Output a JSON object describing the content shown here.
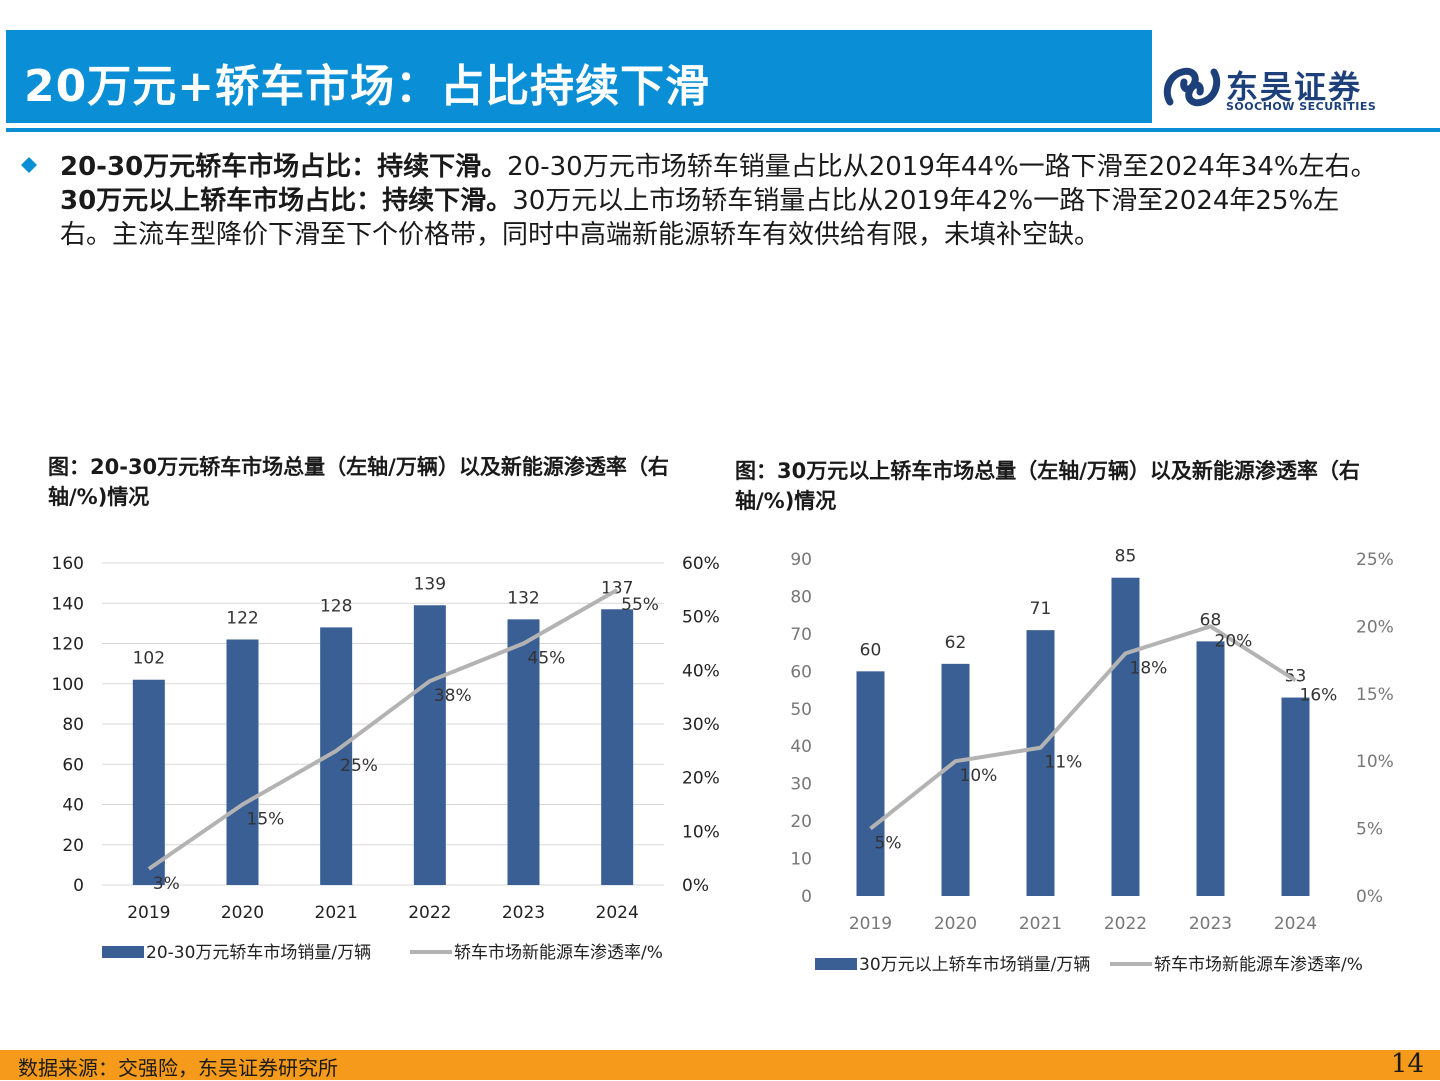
{
  "header": {
    "title": "20万元+轿车市场：占比持续下滑",
    "logo_cn": "东吴证券",
    "logo_en": "SOOCHOW SECURITIES"
  },
  "summary": {
    "b1": "20-30万元轿车市场占比：持续下滑。",
    "t1": "20-30万元市场轿车销量占比从2019年44%一路下滑至2024年34%左右。",
    "b2": "30万元以上轿车市场占比：持续下滑。",
    "t2": "30万元以上市场轿车销量占比从2019年42%一路下滑至2024年25%左右。主流车型降价下滑至下个价格带，同时中高端新能源轿车有效供给有限，未填补空缺。"
  },
  "colors": {
    "bar": "#3a5f94",
    "line": "#b3b3b3",
    "accent": "#0a8fd6",
    "footer": "#f59a1b"
  },
  "chart_data": [
    {
      "type": "bar",
      "title": "图：20-30万元轿车市场总量（左轴/万辆）以及新能源渗透率（右轴/%)情况",
      "categories": [
        "2019",
        "2020",
        "2021",
        "2022",
        "2023",
        "2024"
      ],
      "series": [
        {
          "name": "20-30万元轿车市场销量/万辆",
          "type": "bar",
          "axis": "left",
          "values": [
            102,
            122,
            128,
            139,
            132,
            137
          ],
          "labels": [
            "102",
            "122",
            "128",
            "139",
            "132",
            "137"
          ]
        },
        {
          "name": "轿车市场新能源车渗透率/%",
          "type": "line",
          "axis": "right",
          "values": [
            3,
            15,
            25,
            38,
            45,
            55
          ],
          "labels": [
            "3%",
            "15%",
            "25%",
            "38%",
            "45%",
            "55%"
          ]
        }
      ],
      "left_axis": {
        "min": 0,
        "max": 160,
        "ticks": [
          "0",
          "20",
          "40",
          "60",
          "80",
          "100",
          "120",
          "140",
          "160"
        ]
      },
      "right_axis": {
        "min": 0,
        "max": 60,
        "ticks": [
          "0%",
          "10%",
          "20%",
          "30%",
          "40%",
          "50%",
          "60%"
        ]
      },
      "grid": true,
      "legend": "bottom"
    },
    {
      "type": "bar",
      "title": "图：30万元以上轿车市场总量（左轴/万辆）以及新能源渗透率（右轴/%)情况",
      "categories": [
        "2019",
        "2020",
        "2021",
        "2022",
        "2023",
        "2024"
      ],
      "series": [
        {
          "name": "30万元以上轿车市场销量/万辆",
          "type": "bar",
          "axis": "left",
          "values": [
            60,
            62,
            71,
            85,
            68,
            53
          ],
          "labels": [
            "60",
            "62",
            "71",
            "85",
            "68",
            "53"
          ]
        },
        {
          "name": "轿车市场新能源车渗透率/%",
          "type": "line",
          "axis": "right",
          "values": [
            5,
            10,
            11,
            18,
            20,
            16
          ],
          "labels": [
            "5%",
            "10%",
            "11%",
            "18%",
            "20%",
            "16%"
          ]
        }
      ],
      "left_axis": {
        "min": 0,
        "max": 90,
        "ticks": [
          "0",
          "10",
          "20",
          "30",
          "40",
          "50",
          "60",
          "70",
          "80",
          "90"
        ]
      },
      "right_axis": {
        "min": 0,
        "max": 25,
        "ticks": [
          "0%",
          "5%",
          "10%",
          "15%",
          "20%",
          "25%"
        ]
      },
      "grid": false,
      "legend": "bottom"
    }
  ],
  "footer": {
    "source": "数据来源：交强险，东吴证券研究所",
    "page": "14"
  }
}
